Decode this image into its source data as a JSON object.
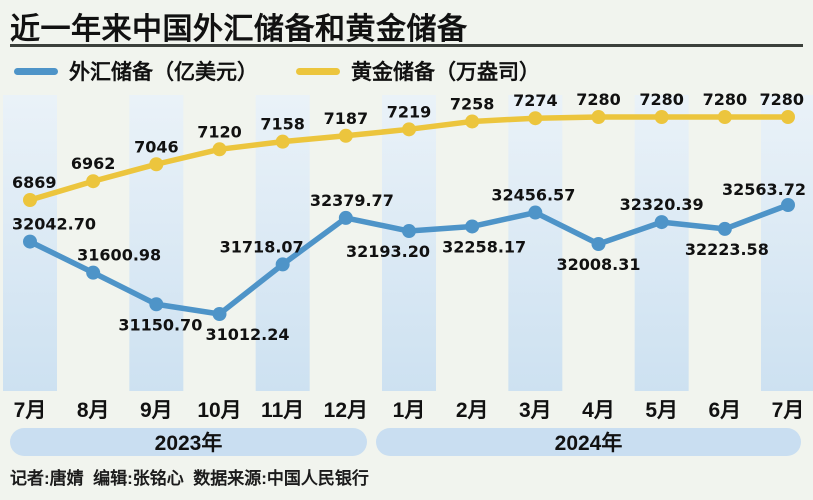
{
  "page": {
    "title": "近一年来中国外汇储备和黄金储备",
    "footer": "记者:唐婧  编辑:张铭心  数据来源:中国人民银行"
  },
  "legend": [
    {
      "label": "外汇储备（亿美元）",
      "color": "#4e94c8"
    },
    {
      "label": "黄金储备（万盎司）",
      "color": "#ecc53d"
    }
  ],
  "colors": {
    "background": "#f1f4ee",
    "stripe_top": "#eaf2f8",
    "stripe_bottom": "#cde1f1",
    "forex_line": "#4e94c8",
    "gold_line": "#ecc53d",
    "year_band": "#c9def1",
    "title_rule": "#3b403b",
    "text": "#111111"
  },
  "chart_data": {
    "type": "line",
    "title": "近一年来中国外汇储备和黄金储备",
    "categories": [
      "7月",
      "8月",
      "9月",
      "10月",
      "11月",
      "12月",
      "1月",
      "2月",
      "3月",
      "4月",
      "5月",
      "6月",
      "7月"
    ],
    "year_bands": [
      {
        "label": "2023年",
        "months": [
          "7月",
          "8月",
          "9月",
          "10月",
          "11月",
          "12月"
        ]
      },
      {
        "label": "2024年",
        "months": [
          "1月",
          "2月",
          "3月",
          "4月",
          "5月",
          "6月",
          "7月"
        ]
      }
    ],
    "legend_position": "top",
    "grid": "alternating-vertical-bands",
    "series": [
      {
        "name": "外汇储备（亿美元）",
        "color": "#4e94c8",
        "values": [
          32042.7,
          31600.98,
          31150.7,
          31012.24,
          31718.07,
          32379.77,
          32193.2,
          32258.17,
          32456.57,
          32008.31,
          32320.39,
          32223.58,
          32563.72
        ],
        "labels": [
          "32042.70",
          "31600.98",
          "31150.70",
          "31012.24",
          "31718.07",
          "32379.77",
          "32193.20",
          "32258.17",
          "32456.57",
          "32008.31",
          "32320.39",
          "32223.58",
          "32563.72"
        ],
        "label_pos": [
          "above",
          "above",
          "below",
          "below",
          "above",
          "above",
          "below",
          "below",
          "above",
          "below",
          "above",
          "below",
          "above"
        ],
        "label_dx": [
          0,
          26,
          4,
          28,
          -21,
          6,
          -21,
          12,
          -2,
          0,
          0,
          2,
          0
        ]
      },
      {
        "name": "黄金储备（万盎司）",
        "color": "#ecc53d",
        "values": [
          6869,
          6962,
          7046,
          7120,
          7158,
          7187,
          7219,
          7258,
          7274,
          7280,
          7280,
          7280,
          7280
        ],
        "labels": [
          "6869",
          "6962",
          "7046",
          "7120",
          "7158",
          "7187",
          "7219",
          "7258",
          "7274",
          "7280",
          "7280",
          "7280",
          "7280"
        ],
        "label_pos": [
          "above",
          "above",
          "above",
          "above",
          "above",
          "above",
          "above",
          "above",
          "above",
          "above",
          "above",
          "above",
          "above"
        ],
        "label_dx": [
          0,
          0,
          0,
          0,
          0,
          0,
          0,
          0,
          0,
          0,
          0,
          0,
          0
        ]
      }
    ],
    "value_range_forex": [
      31012.24,
      32563.72
    ],
    "value_range_gold": [
      6869,
      7280
    ]
  }
}
